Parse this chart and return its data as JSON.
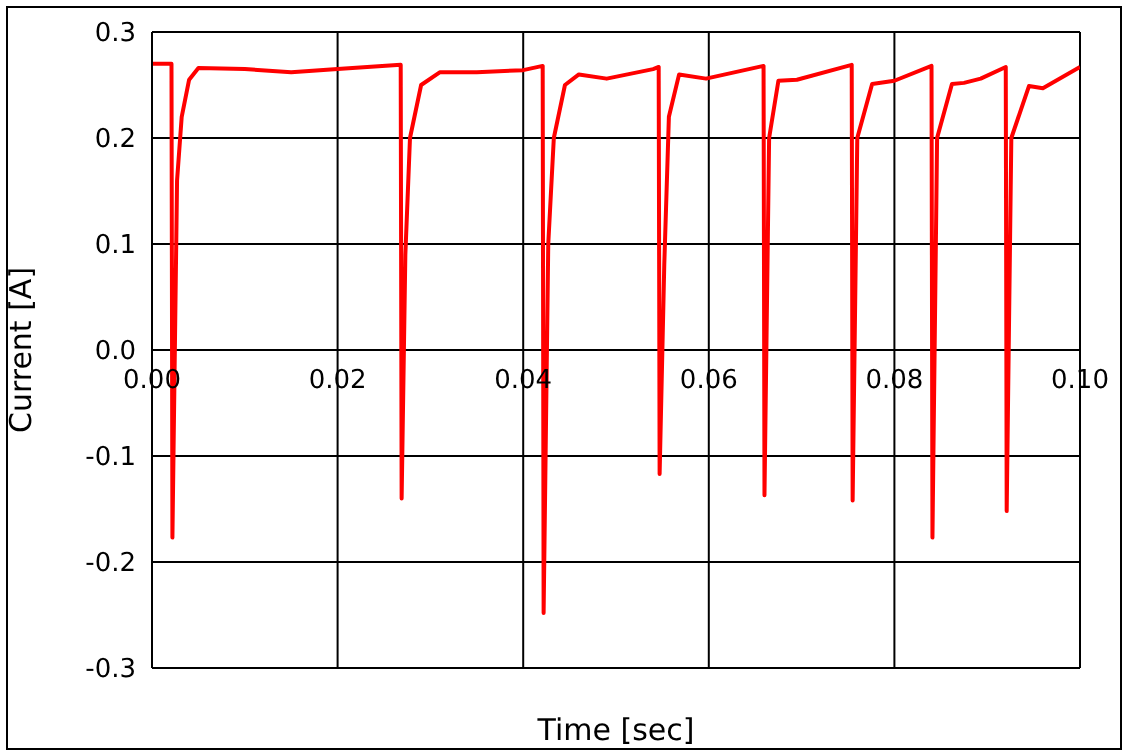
{
  "chart_data": {
    "type": "line",
    "xlabel": "Time [sec]",
    "ylabel": "Current [A]",
    "x": [
      0,
      0.0021,
      0.0022,
      0.0027,
      0.0032,
      0.004,
      0.005,
      0.01,
      0.015,
      0.02,
      0.0268,
      0.0269,
      0.0273,
      0.0278,
      0.029,
      0.031,
      0.035,
      0.04,
      0.0421,
      0.0422,
      0.0427,
      0.0433,
      0.0445,
      0.046,
      0.049,
      0.054,
      0.0546,
      0.0547,
      0.0552,
      0.0557,
      0.0568,
      0.0597,
      0.0659,
      0.066,
      0.0665,
      0.0675,
      0.0695,
      0.0754,
      0.0755,
      0.076,
      0.0776,
      0.08,
      0.084,
      0.0841,
      0.0846,
      0.0862,
      0.0875,
      0.0893,
      0.092,
      0.0921,
      0.0926,
      0.0945,
      0.096,
      0.1
    ],
    "series": [
      {
        "color": "#ff0000",
        "values": [
          0.27,
          0.27,
          -0.177,
          0.16,
          0.22,
          0.255,
          0.266,
          0.265,
          0.262,
          0.265,
          0.269,
          -0.14,
          0.09,
          0.2,
          0.25,
          0.262,
          0.262,
          0.264,
          0.268,
          -0.248,
          0.1,
          0.2,
          0.25,
          0.26,
          0.256,
          0.265,
          0.267,
          -0.117,
          0.08,
          0.22,
          0.26,
          0.256,
          0.268,
          -0.137,
          0.2,
          0.254,
          0.255,
          0.269,
          -0.142,
          0.2,
          0.251,
          0.254,
          0.268,
          -0.177,
          0.2,
          0.251,
          0.252,
          0.256,
          0.267,
          -0.152,
          0.2,
          0.249,
          0.247,
          0.267
        ]
      }
    ],
    "xlim": [
      0,
      0.1
    ],
    "ylim": [
      -0.3,
      0.3
    ],
    "xticks": [
      {
        "value": 0,
        "label": "0.00"
      },
      0.02,
      0.04,
      0.06,
      0.08,
      {
        "value": 0.1,
        "label": "0.10"
      }
    ],
    "yticks": [
      -0.3,
      -0.2,
      -0.1,
      {
        "value": 0,
        "label": "0.0"
      },
      0.1,
      0.2,
      0.3
    ],
    "grid": true,
    "legend": false,
    "marker": "none",
    "line_style": "solid"
  }
}
